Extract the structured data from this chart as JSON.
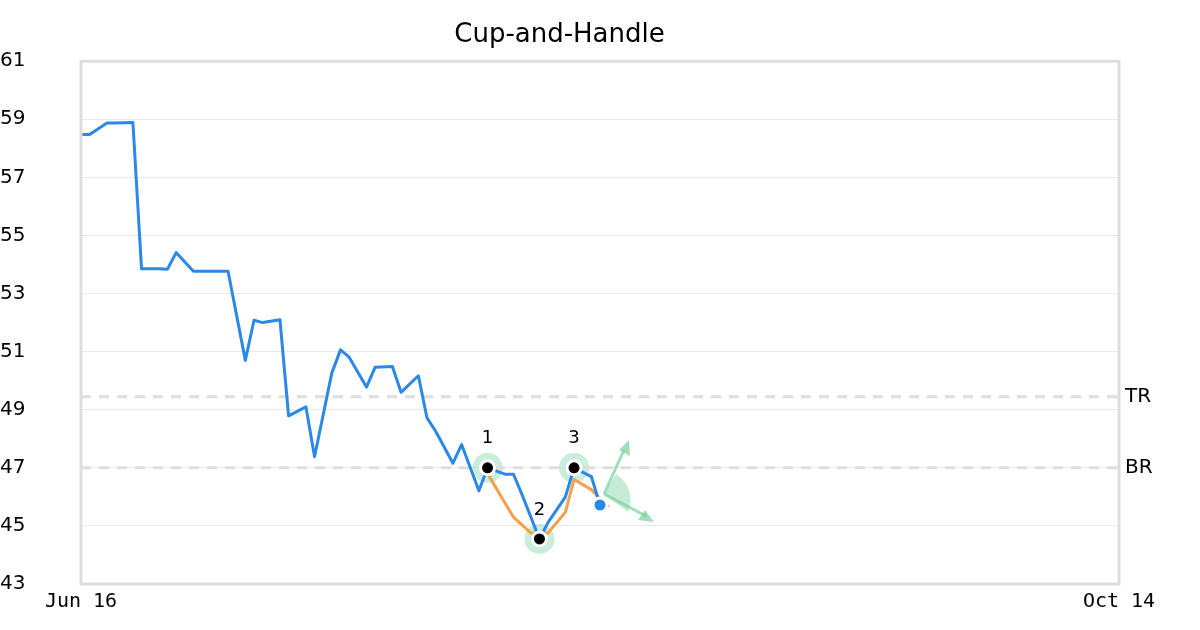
{
  "chart_data": {
    "type": "line",
    "title": "Cup-and-Handle",
    "xlim": [
      "--06-16",
      "--10-14"
    ],
    "xticks": [
      {
        "value": "--06-16",
        "label": "Jun 16"
      },
      {
        "value": "--10-14",
        "label": "Oct 14"
      }
    ],
    "ylim": [
      43,
      61
    ],
    "yticks": [
      43,
      45,
      47,
      49,
      51,
      53,
      55,
      57,
      59,
      61
    ],
    "grid": "y",
    "legend": false,
    "series": [
      {
        "color": "#2a88e8",
        "marker": "none",
        "x": [
          "--06-16",
          "--06-17",
          "--06-19",
          "--06-20",
          "--06-22",
          "--06-23",
          "--06-25",
          "--06-26",
          "--06-27",
          "--06-29",
          "--06-30",
          "--07-02",
          "--07-03",
          "--07-05",
          "--07-06",
          "--07-07",
          "--07-09",
          "--07-10",
          "--07-12",
          "--07-13",
          "--07-15",
          "--07-16",
          "--07-17",
          "--07-19",
          "--07-20",
          "--07-22",
          "--07-23",
          "--07-25",
          "--07-26",
          "--07-27",
          "--07-29",
          "--07-30",
          "--08-01",
          "--08-02",
          "--08-04",
          "--08-05",
          "--08-06",
          "--08-08",
          "--08-09",
          "--08-11",
          "--08-12",
          "--08-14",
          "--08-15"
        ],
        "values": [
          58.48,
          58.48,
          58.87,
          58.87,
          58.89,
          53.85,
          53.85,
          53.84,
          54.41,
          53.77,
          53.77,
          53.77,
          53.77,
          50.7,
          52.08,
          52.0,
          52.1,
          48.79,
          49.1,
          47.38,
          50.27,
          51.06,
          50.81,
          49.78,
          50.46,
          50.49,
          49.6,
          50.17,
          48.72,
          48.26,
          47.16,
          47.8,
          46.21,
          47.0,
          46.78,
          46.78,
          46.07,
          44.55,
          45.12,
          46.0,
          47.0,
          46.7,
          45.72
        ]
      },
      {
        "color": "#f5a04a",
        "marker": "none",
        "x": [
          "--08-02",
          "--08-05",
          "--08-07",
          "--08-08",
          "--08-09",
          "--08-11",
          "--08-12",
          "--08-14",
          "--08-16"
        ],
        "values": [
          46.8,
          45.3,
          44.76,
          null,
          44.76,
          45.47,
          46.6,
          46.25,
          45.65
        ]
      },
      {
        "type": "scatter",
        "color": "#000000",
        "marker": "circle",
        "x": [
          "--08-02",
          "--08-08",
          "--08-12"
        ],
        "values": [
          47.0,
          44.55,
          47.0
        ]
      },
      {
        "type": "scatter",
        "color": "#2a88e8",
        "marker": "circle",
        "x": [
          "--08-15"
        ],
        "values": [
          45.72
        ]
      }
    ],
    "ref_lines": [
      {
        "axis": "y",
        "value": 49.45,
        "label": "TR",
        "color": "#dddddd",
        "line_style": "dashed"
      },
      {
        "axis": "y",
        "value": 47.0,
        "label": "BR",
        "color": "#dddddd",
        "line_style": "dashed"
      }
    ],
    "annotations": [
      {
        "text": "1",
        "x": "--08-02",
        "y": 47.0
      },
      {
        "text": "2",
        "x": "--08-08",
        "y": 44.55
      },
      {
        "text": "3",
        "x": "--08-12",
        "y": 47.0
      }
    ]
  }
}
